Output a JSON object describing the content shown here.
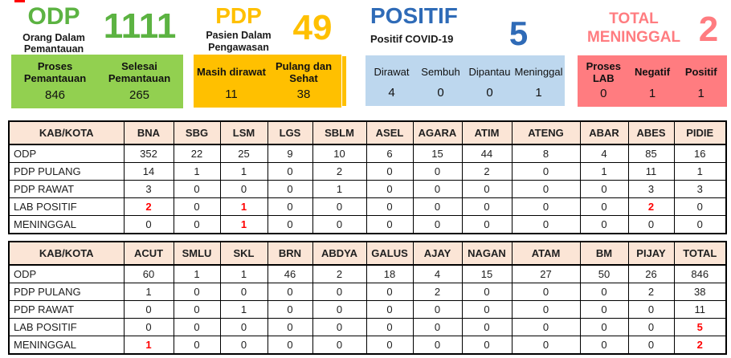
{
  "cards": [
    {
      "id": "odp",
      "title": "ODP",
      "subtitle": "Orang Dalam Pemantauan",
      "big_number": "1111",
      "stats": [
        {
          "label": "Proses Pemantauan",
          "value": "846"
        },
        {
          "label": "Selesai Pemantauan",
          "value": "265"
        }
      ]
    },
    {
      "id": "pdp",
      "title": "PDP",
      "subtitle": "Pasien Dalam Pengawasan",
      "big_number": "49",
      "stats": [
        {
          "label": "Masih dirawat",
          "value": "11"
        },
        {
          "label": "Pulang dan Sehat",
          "value": "38"
        }
      ]
    },
    {
      "id": "positif",
      "title": "POSITIF",
      "subtitle": "Positif COVID-19",
      "big_number": "5",
      "stats": [
        {
          "label": "Dirawat",
          "value": "4"
        },
        {
          "label": "Sembuh",
          "value": "0"
        },
        {
          "label": "Dipantau",
          "value": "0"
        },
        {
          "label": "Meninggal",
          "value": "1"
        }
      ]
    },
    {
      "id": "total-meninggal",
      "title": "TOTAL MENINGGAL",
      "subtitle": "",
      "big_number": "2",
      "stats": [
        {
          "label": "Proses LAB",
          "value": "0"
        },
        {
          "label": "Negatif",
          "value": "1"
        },
        {
          "label": "Positif",
          "value": "1"
        }
      ]
    }
  ],
  "tables": [
    {
      "header": [
        "KAB/KOTA",
        "BNA",
        "SBG",
        "LSM",
        "LGS",
        "SBLM",
        "ASEL",
        "AGARA",
        "ATIM",
        "ATENG",
        "ABAR",
        "ABES",
        "PIDIE"
      ],
      "rows": [
        {
          "label": "ODP",
          "values": [
            "352",
            "22",
            "25",
            "9",
            "10",
            "6",
            "15",
            "44",
            "8",
            "4",
            "85",
            "16"
          ],
          "red": []
        },
        {
          "label": "PDP PULANG",
          "values": [
            "14",
            "1",
            "1",
            "0",
            "2",
            "0",
            "0",
            "2",
            "0",
            "1",
            "11",
            "1"
          ],
          "red": []
        },
        {
          "label": "PDP RAWAT",
          "values": [
            "3",
            "0",
            "0",
            "0",
            "1",
            "0",
            "0",
            "0",
            "0",
            "0",
            "3",
            "3"
          ],
          "red": []
        },
        {
          "label": "LAB POSITIF",
          "values": [
            "2",
            "0",
            "1",
            "0",
            "0",
            "0",
            "0",
            "0",
            "0",
            "0",
            "2",
            "0"
          ],
          "red": [
            0,
            2,
            10
          ]
        },
        {
          "label": "MENINGGAL",
          "values": [
            "0",
            "0",
            "1",
            "0",
            "0",
            "0",
            "0",
            "0",
            "0",
            "0",
            "0",
            "0"
          ],
          "red": [
            2
          ]
        }
      ]
    },
    {
      "header": [
        "KAB/KOTA",
        "ACUT",
        "SMLU",
        "SKL",
        "BRN",
        "ABDYA",
        "GALUS",
        "AJAY",
        "NAGAN",
        "ATAM",
        "BM",
        "PIJAY",
        "TOTAL"
      ],
      "rows": [
        {
          "label": "ODP",
          "values": [
            "60",
            "1",
            "1",
            "46",
            "2",
            "18",
            "4",
            "15",
            "27",
            "50",
            "26",
            "846"
          ],
          "red": []
        },
        {
          "label": "PDP PULANG",
          "values": [
            "1",
            "0",
            "0",
            "0",
            "0",
            "0",
            "2",
            "0",
            "0",
            "0",
            "2",
            "38"
          ],
          "red": []
        },
        {
          "label": "PDP RAWAT",
          "values": [
            "0",
            "0",
            "1",
            "0",
            "0",
            "0",
            "0",
            "0",
            "0",
            "0",
            "0",
            "11"
          ],
          "red": []
        },
        {
          "label": "LAB POSITIF",
          "values": [
            "0",
            "0",
            "0",
            "0",
            "0",
            "0",
            "0",
            "0",
            "0",
            "0",
            "0",
            "5"
          ],
          "red": [
            11
          ]
        },
        {
          "label": "MENINGGAL",
          "values": [
            "1",
            "0",
            "0",
            "0",
            "0",
            "0",
            "0",
            "0",
            "0",
            "0",
            "0",
            "2"
          ],
          "red": [
            0,
            11
          ]
        }
      ]
    }
  ],
  "colors": {
    "green_text": "#5CB342",
    "green_box": "#92D050",
    "gold_text": "#FFC000",
    "gold_box": "#FFC000",
    "blue_text": "#2F6BB7",
    "blue_box": "#BDD7EE",
    "salmon_text": "#FF7C80",
    "salmon_box": "#FF7C80",
    "table_header_bg": "#FBE5D6",
    "alert_red": "#FF0000"
  }
}
